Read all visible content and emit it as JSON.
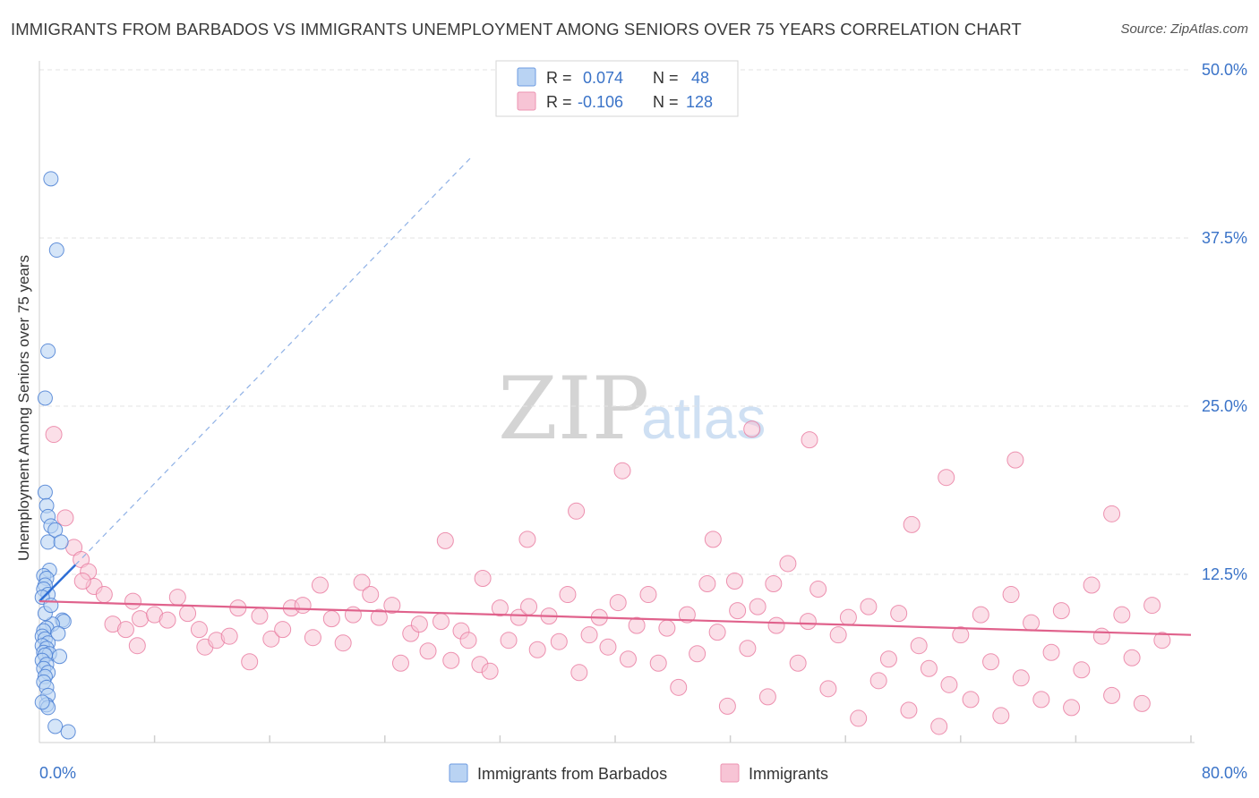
{
  "header": {
    "title": "IMMIGRANTS FROM BARBADOS VS IMMIGRANTS UNEMPLOYMENT AMONG SENIORS OVER 75 YEARS CORRELATION CHART",
    "source": "Source: ZipAtlas.com"
  },
  "watermark": {
    "zip": "ZIP",
    "atlas": "atlas"
  },
  "colors": {
    "blue": "#4a7fd4",
    "blue_fill": "#b9d3f3",
    "blue_line": "#2f6fd6",
    "pink": "#e9789e",
    "pink_fill": "#f7c4d5",
    "pink_line": "#e0628c",
    "axis_text": "#3a73c8",
    "grid": "#e3e3e3"
  },
  "legend_top": {
    "rows": [
      {
        "r_label": "R =",
        "r_value": "0.074",
        "n_label": "N =",
        "n_value": "48",
        "color": "blue"
      },
      {
        "r_label": "R =",
        "r_value": "-0.106",
        "n_label": "N =",
        "n_value": "128",
        "color": "pink"
      }
    ]
  },
  "legend_bottom": [
    {
      "label": "Immigrants from Barbados",
      "color": "blue"
    },
    {
      "label": "Immigrants",
      "color": "pink"
    }
  ],
  "chart_data": {
    "type": "scatter",
    "title": "IMMIGRANTS FROM BARBADOS VS IMMIGRANTS UNEMPLOYMENT AMONG SENIORS OVER 75 YEARS CORRELATION CHART",
    "xlabel": "",
    "ylabel": "Unemployment Among Seniors over 75 years",
    "xlim": [
      0,
      80
    ],
    "ylim": [
      0,
      50
    ],
    "x_tick_labels": [
      "0.0%",
      "80.0%"
    ],
    "y_ticks": [
      12.5,
      25.0,
      37.5,
      50.0
    ],
    "y_tick_labels": [
      "12.5%",
      "25.0%",
      "37.5%",
      "50.0%"
    ],
    "grid": true,
    "legend_position": "bottom",
    "series": [
      {
        "name": "Immigrants from Barbados",
        "color": "blue",
        "r": 0.074,
        "n": 48,
        "trend": {
          "x0": 0.0,
          "y0": 10.5,
          "x1": 2.5,
          "y1": 13.2,
          "dashed_to": [
            30.0,
            43.5
          ]
        },
        "points": [
          [
            0.8,
            41.9
          ],
          [
            1.2,
            36.6
          ],
          [
            0.6,
            29.1
          ],
          [
            0.4,
            25.6
          ],
          [
            0.4,
            18.6
          ],
          [
            0.5,
            17.6
          ],
          [
            0.6,
            16.8
          ],
          [
            0.8,
            16.1
          ],
          [
            1.1,
            15.8
          ],
          [
            0.6,
            14.9
          ],
          [
            1.5,
            14.9
          ],
          [
            0.7,
            12.8
          ],
          [
            0.3,
            12.4
          ],
          [
            0.5,
            12.2
          ],
          [
            0.4,
            11.7
          ],
          [
            0.3,
            11.4
          ],
          [
            0.6,
            11.0
          ],
          [
            0.2,
            10.8
          ],
          [
            1.6,
            9.1
          ],
          [
            1.7,
            9.0
          ],
          [
            0.9,
            8.8
          ],
          [
            0.5,
            8.5
          ],
          [
            0.3,
            8.3
          ],
          [
            1.3,
            8.1
          ],
          [
            0.2,
            7.9
          ],
          [
            0.4,
            7.7
          ],
          [
            0.6,
            7.4
          ],
          [
            0.2,
            7.2
          ],
          [
            0.5,
            7.0
          ],
          [
            0.3,
            6.7
          ],
          [
            0.7,
            6.6
          ],
          [
            0.4,
            6.5
          ],
          [
            1.4,
            6.4
          ],
          [
            0.2,
            6.1
          ],
          [
            0.5,
            5.8
          ],
          [
            0.3,
            5.5
          ],
          [
            0.6,
            5.2
          ],
          [
            0.4,
            4.9
          ],
          [
            0.3,
            4.5
          ],
          [
            0.5,
            4.1
          ],
          [
            0.6,
            3.5
          ],
          [
            0.5,
            2.8
          ],
          [
            0.6,
            2.6
          ],
          [
            1.1,
            1.2
          ],
          [
            2.0,
            0.8
          ],
          [
            0.2,
            3.0
          ],
          [
            0.4,
            9.6
          ],
          [
            0.8,
            10.2
          ]
        ]
      },
      {
        "name": "Immigrants",
        "color": "pink",
        "r": -0.106,
        "n": 128,
        "trend": {
          "x0": 0.0,
          "y0": 10.5,
          "x1": 80.0,
          "y1": 8.0
        },
        "points": [
          [
            1.0,
            22.9
          ],
          [
            1.8,
            16.7
          ],
          [
            2.4,
            14.5
          ],
          [
            2.9,
            13.6
          ],
          [
            3.4,
            12.7
          ],
          [
            3.8,
            11.6
          ],
          [
            4.5,
            11.0
          ],
          [
            5.1,
            8.8
          ],
          [
            6.0,
            8.4
          ],
          [
            7.0,
            9.2
          ],
          [
            6.8,
            7.2
          ],
          [
            8.0,
            9.5
          ],
          [
            8.9,
            9.1
          ],
          [
            9.6,
            10.8
          ],
          [
            10.3,
            9.6
          ],
          [
            11.1,
            8.4
          ],
          [
            11.5,
            7.1
          ],
          [
            12.3,
            7.6
          ],
          [
            13.2,
            7.9
          ],
          [
            13.8,
            10.0
          ],
          [
            14.6,
            6.0
          ],
          [
            15.3,
            9.4
          ],
          [
            16.1,
            7.7
          ],
          [
            16.9,
            8.4
          ],
          [
            17.5,
            10.0
          ],
          [
            18.3,
            10.2
          ],
          [
            19.0,
            7.8
          ],
          [
            19.5,
            11.7
          ],
          [
            20.3,
            9.2
          ],
          [
            21.1,
            7.4
          ],
          [
            21.8,
            9.5
          ],
          [
            22.4,
            11.9
          ],
          [
            23.0,
            11.0
          ],
          [
            23.6,
            9.3
          ],
          [
            24.5,
            10.2
          ],
          [
            25.1,
            5.9
          ],
          [
            25.8,
            8.1
          ],
          [
            26.4,
            8.8
          ],
          [
            27.0,
            6.8
          ],
          [
            27.9,
            9.0
          ],
          [
            28.6,
            6.1
          ],
          [
            29.3,
            8.3
          ],
          [
            29.8,
            7.6
          ],
          [
            30.6,
            5.8
          ],
          [
            31.3,
            5.3
          ],
          [
            32.0,
            10.0
          ],
          [
            32.6,
            7.6
          ],
          [
            33.3,
            9.3
          ],
          [
            34.0,
            10.1
          ],
          [
            34.6,
            6.9
          ],
          [
            35.4,
            9.4
          ],
          [
            36.1,
            7.5
          ],
          [
            36.7,
            11.0
          ],
          [
            37.5,
            5.2
          ],
          [
            38.2,
            8.0
          ],
          [
            38.9,
            9.3
          ],
          [
            39.5,
            7.1
          ],
          [
            40.2,
            10.4
          ],
          [
            40.9,
            6.2
          ],
          [
            41.5,
            8.7
          ],
          [
            42.3,
            11.0
          ],
          [
            43.0,
            5.9
          ],
          [
            43.6,
            8.5
          ],
          [
            44.4,
            4.1
          ],
          [
            45.0,
            9.5
          ],
          [
            45.7,
            6.6
          ],
          [
            46.4,
            11.8
          ],
          [
            47.1,
            8.2
          ],
          [
            47.8,
            2.7
          ],
          [
            48.5,
            9.8
          ],
          [
            49.2,
            7.0
          ],
          [
            49.9,
            10.1
          ],
          [
            50.6,
            3.4
          ],
          [
            51.2,
            8.7
          ],
          [
            52.0,
            13.3
          ],
          [
            52.7,
            5.9
          ],
          [
            53.4,
            9.0
          ],
          [
            54.1,
            11.4
          ],
          [
            54.8,
            4.0
          ],
          [
            55.5,
            8.0
          ],
          [
            56.2,
            9.3
          ],
          [
            56.9,
            1.8
          ],
          [
            57.6,
            10.1
          ],
          [
            58.3,
            4.6
          ],
          [
            59.0,
            6.2
          ],
          [
            59.7,
            9.6
          ],
          [
            60.4,
            2.4
          ],
          [
            61.1,
            7.2
          ],
          [
            61.8,
            5.5
          ],
          [
            62.5,
            1.2
          ],
          [
            63.2,
            4.3
          ],
          [
            64.0,
            8.0
          ],
          [
            64.7,
            3.2
          ],
          [
            65.4,
            9.5
          ],
          [
            66.1,
            6.0
          ],
          [
            66.8,
            2.0
          ],
          [
            67.5,
            11.0
          ],
          [
            68.2,
            4.8
          ],
          [
            68.9,
            8.9
          ],
          [
            69.6,
            3.2
          ],
          [
            70.3,
            6.7
          ],
          [
            71.0,
            9.8
          ],
          [
            71.7,
            2.6
          ],
          [
            72.4,
            5.4
          ],
          [
            73.1,
            11.7
          ],
          [
            73.8,
            7.9
          ],
          [
            74.5,
            3.5
          ],
          [
            75.2,
            9.5
          ],
          [
            75.9,
            6.3
          ],
          [
            76.6,
            2.9
          ],
          [
            77.3,
            10.2
          ],
          [
            78.0,
            7.6
          ],
          [
            63.0,
            19.7
          ],
          [
            67.8,
            21.0
          ],
          [
            74.5,
            17.0
          ],
          [
            53.5,
            22.5
          ],
          [
            49.5,
            23.3
          ],
          [
            60.6,
            16.2
          ],
          [
            40.5,
            20.2
          ],
          [
            28.2,
            15.0
          ],
          [
            33.9,
            15.1
          ],
          [
            37.3,
            17.2
          ],
          [
            46.8,
            15.1
          ],
          [
            48.3,
            12.0
          ],
          [
            51.0,
            11.8
          ],
          [
            30.8,
            12.2
          ],
          [
            6.5,
            10.5
          ],
          [
            3.0,
            12.0
          ]
        ]
      }
    ]
  }
}
